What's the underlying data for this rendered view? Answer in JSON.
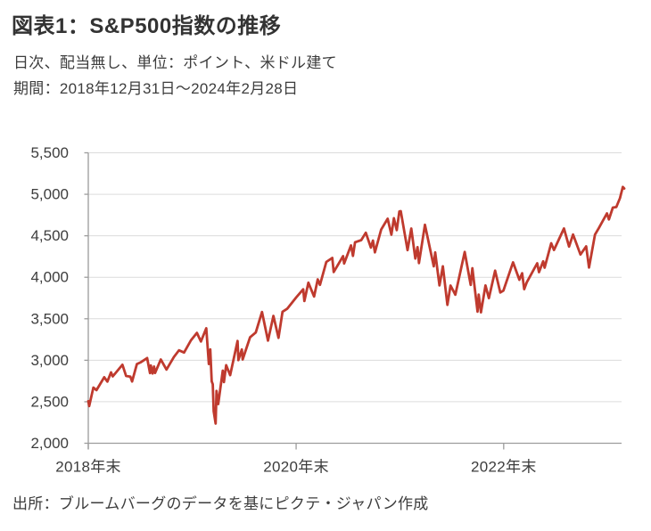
{
  "header": {
    "title": "図表1：S&P500指数の推移",
    "subtitle_line1": "日次、配当無し、単位：ポイント、米ドル建て",
    "subtitle_line2": "期間：2018年12月31日～2024年2月28日"
  },
  "source": "出所：ブルームバーグのデータを基にピクテ・ジャパン作成",
  "chart_data": {
    "type": "line",
    "title": "図表1：S&P500指数の推移",
    "xlabel": "",
    "ylabel": "",
    "ylim": [
      2000,
      5500
    ],
    "grid": true,
    "legend": "none",
    "line_color": "#bf3a2e",
    "grid_color": "#dcdcdc",
    "axis_color": "#9c9c9c",
    "tick_label_color": "#3d3d3d",
    "x_range": [
      "2018-12-31",
      "2024-02-28"
    ],
    "y_ticks": [
      {
        "value": 2000,
        "label": "2,000"
      },
      {
        "value": 2500,
        "label": "2,500"
      },
      {
        "value": 3000,
        "label": "3,000"
      },
      {
        "value": 3500,
        "label": "3,500"
      },
      {
        "value": 4000,
        "label": "4,000"
      },
      {
        "value": 4500,
        "label": "4,500"
      },
      {
        "value": 5000,
        "label": "5,000"
      },
      {
        "value": 5500,
        "label": "5,500"
      }
    ],
    "x_ticks": [
      {
        "date": "2018-12-31",
        "label": "2018年末"
      },
      {
        "date": "2020-12-31",
        "label": "2020年末"
      },
      {
        "date": "2022-12-31",
        "label": "2022年末"
      }
    ],
    "points": [
      [
        "2018-12-31",
        2507
      ],
      [
        "2019-01-03",
        2448
      ],
      [
        "2019-01-18",
        2671
      ],
      [
        "2019-01-29",
        2640
      ],
      [
        "2019-02-25",
        2796
      ],
      [
        "2019-03-08",
        2743
      ],
      [
        "2019-03-21",
        2855
      ],
      [
        "2019-03-27",
        2805
      ],
      [
        "2019-04-30",
        2946
      ],
      [
        "2019-05-13",
        2811
      ],
      [
        "2019-05-28",
        2802
      ],
      [
        "2019-06-03",
        2744
      ],
      [
        "2019-06-20",
        2954
      ],
      [
        "2019-07-02",
        2973
      ],
      [
        "2019-07-26",
        3026
      ],
      [
        "2019-08-05",
        2845
      ],
      [
        "2019-08-08",
        2938
      ],
      [
        "2019-08-14",
        2841
      ],
      [
        "2019-08-19",
        2924
      ],
      [
        "2019-08-23",
        2847
      ],
      [
        "2019-09-12",
        3009
      ],
      [
        "2019-10-02",
        2888
      ],
      [
        "2019-10-28",
        3039
      ],
      [
        "2019-11-15",
        3120
      ],
      [
        "2019-12-03",
        3093
      ],
      [
        "2019-12-27",
        3240
      ],
      [
        "2020-01-17",
        3330
      ],
      [
        "2020-01-31",
        3226
      ],
      [
        "2020-02-19",
        3386
      ],
      [
        "2020-02-28",
        2954
      ],
      [
        "2020-03-04",
        3130
      ],
      [
        "2020-03-09",
        2746
      ],
      [
        "2020-03-13",
        2711
      ],
      [
        "2020-03-16",
        2386
      ],
      [
        "2020-03-23",
        2237
      ],
      [
        "2020-03-26",
        2630
      ],
      [
        "2020-04-01",
        2471
      ],
      [
        "2020-04-17",
        2875
      ],
      [
        "2020-04-21",
        2737
      ],
      [
        "2020-04-29",
        2940
      ],
      [
        "2020-05-13",
        2820
      ],
      [
        "2020-06-08",
        3232
      ],
      [
        "2020-06-11",
        3002
      ],
      [
        "2020-06-23",
        3131
      ],
      [
        "2020-06-26",
        3009
      ],
      [
        "2020-07-22",
        3276
      ],
      [
        "2020-08-11",
        3334
      ],
      [
        "2020-09-02",
        3581
      ],
      [
        "2020-09-23",
        3237
      ],
      [
        "2020-10-12",
        3534
      ],
      [
        "2020-10-30",
        3270
      ],
      [
        "2020-11-13",
        3585
      ],
      [
        "2020-11-30",
        3622
      ],
      [
        "2020-12-31",
        3756
      ],
      [
        "2021-01-25",
        3855
      ],
      [
        "2021-01-29",
        3714
      ],
      [
        "2021-02-12",
        3935
      ],
      [
        "2021-03-04",
        3768
      ],
      [
        "2021-03-17",
        3974
      ],
      [
        "2021-03-25",
        3909
      ],
      [
        "2021-04-16",
        4185
      ],
      [
        "2021-05-07",
        4233
      ],
      [
        "2021-05-12",
        4063
      ],
      [
        "2021-06-14",
        4255
      ],
      [
        "2021-06-18",
        4166
      ],
      [
        "2021-07-12",
        4385
      ],
      [
        "2021-07-19",
        4258
      ],
      [
        "2021-07-26",
        4422
      ],
      [
        "2021-08-17",
        4448
      ],
      [
        "2021-09-02",
        4537
      ],
      [
        "2021-09-20",
        4358
      ],
      [
        "2021-09-27",
        4443
      ],
      [
        "2021-10-04",
        4300
      ],
      [
        "2021-10-26",
        4575
      ],
      [
        "2021-11-18",
        4705
      ],
      [
        "2021-12-01",
        4513
      ],
      [
        "2021-12-10",
        4712
      ],
      [
        "2021-12-20",
        4568
      ],
      [
        "2021-12-29",
        4793
      ],
      [
        "2022-01-03",
        4797
      ],
      [
        "2022-01-27",
        4327
      ],
      [
        "2022-02-09",
        4587
      ],
      [
        "2022-02-23",
        4226
      ],
      [
        "2022-03-03",
        4363
      ],
      [
        "2022-03-08",
        4171
      ],
      [
        "2022-03-29",
        4632
      ],
      [
        "2022-04-29",
        4132
      ],
      [
        "2022-05-04",
        4300
      ],
      [
        "2022-05-19",
        3901
      ],
      [
        "2022-05-31",
        4132
      ],
      [
        "2022-06-16",
        3667
      ],
      [
        "2022-06-27",
        3900
      ],
      [
        "2022-07-14",
        3790
      ],
      [
        "2022-08-16",
        4305
      ],
      [
        "2022-09-06",
        3908
      ],
      [
        "2022-09-12",
        4110
      ],
      [
        "2022-09-30",
        3586
      ],
      [
        "2022-10-04",
        3791
      ],
      [
        "2022-10-12",
        3577
      ],
      [
        "2022-10-28",
        3901
      ],
      [
        "2022-11-09",
        3748
      ],
      [
        "2022-12-01",
        4080
      ],
      [
        "2022-12-19",
        3817
      ],
      [
        "2022-12-30",
        3839
      ],
      [
        "2023-02-02",
        4180
      ],
      [
        "2023-02-24",
        3970
      ],
      [
        "2023-03-06",
        4048
      ],
      [
        "2023-03-13",
        3856
      ],
      [
        "2023-03-22",
        3937
      ],
      [
        "2023-04-28",
        4169
      ],
      [
        "2023-05-04",
        4061
      ],
      [
        "2023-05-19",
        4192
      ],
      [
        "2023-05-24",
        4115
      ],
      [
        "2023-06-16",
        4410
      ],
      [
        "2023-06-26",
        4329
      ],
      [
        "2023-07-31",
        4589
      ],
      [
        "2023-08-18",
        4370
      ],
      [
        "2023-09-01",
        4516
      ],
      [
        "2023-09-27",
        4274
      ],
      [
        "2023-10-17",
        4373
      ],
      [
        "2023-10-27",
        4117
      ],
      [
        "2023-11-17",
        4514
      ],
      [
        "2023-12-01",
        4595
      ],
      [
        "2023-12-29",
        4770
      ],
      [
        "2024-01-05",
        4697
      ],
      [
        "2024-01-19",
        4840
      ],
      [
        "2024-01-31",
        4846
      ],
      [
        "2024-02-13",
        4953
      ],
      [
        "2024-02-23",
        5089
      ],
      [
        "2024-02-28",
        5070
      ]
    ]
  }
}
